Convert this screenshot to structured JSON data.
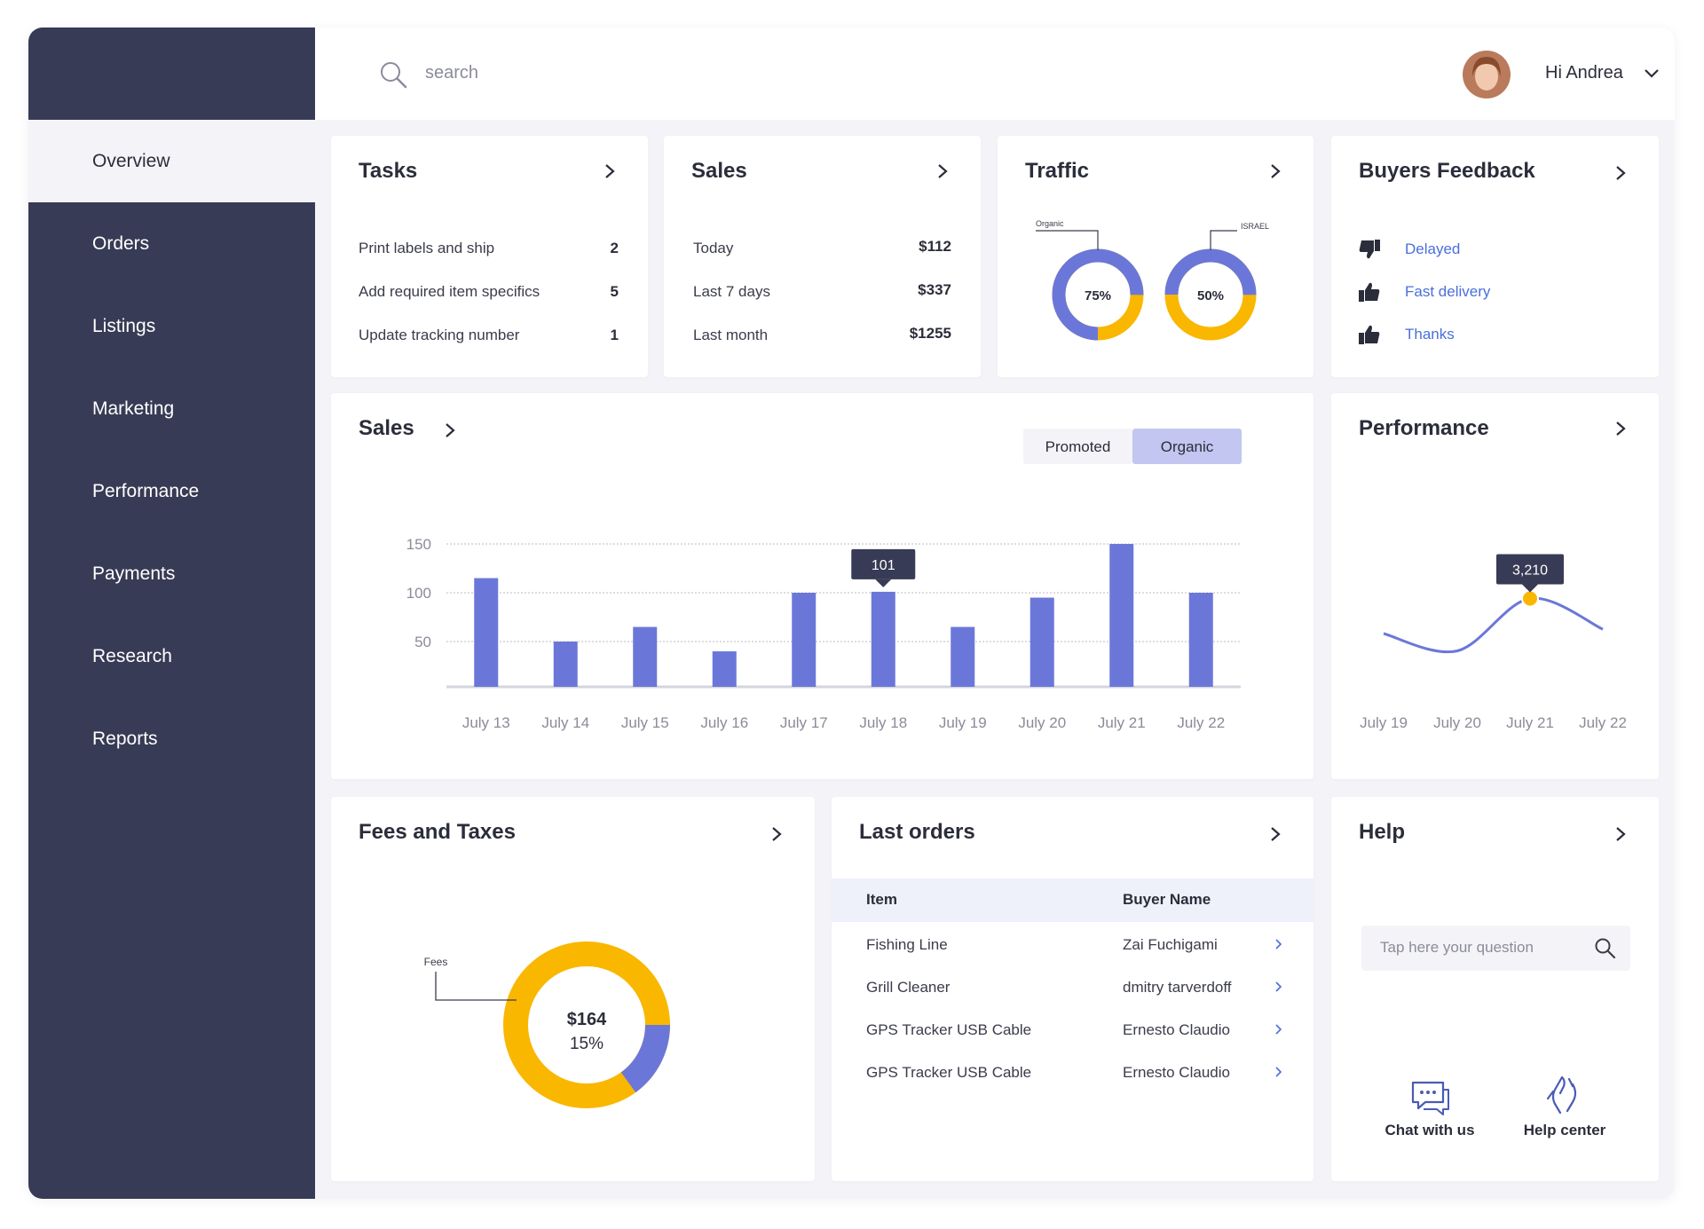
{
  "search_placeholder": "search",
  "user": {
    "greeting": "Hi Andrea"
  },
  "nav": [
    "Overview",
    "Orders",
    "Listings",
    "Marketing",
    "Performance",
    "Payments",
    "Research",
    "Reports"
  ],
  "active_nav": 0,
  "tasks": {
    "title": "Tasks",
    "rows": [
      {
        "label": "Print labels and ship",
        "count": 2
      },
      {
        "label": "Add required item specifics",
        "count": 5
      },
      {
        "label": "Update tracking number",
        "count": 1
      }
    ]
  },
  "sales_summary": {
    "title": "Sales",
    "rows": [
      {
        "label": "Today",
        "amount": "$112"
      },
      {
        "label": "Last 7 days",
        "amount": "$337"
      },
      {
        "label": "Last month",
        "amount": "$1255"
      }
    ]
  },
  "traffic": {
    "title": "Traffic",
    "charts": [
      {
        "type": "donut",
        "label": "Organic",
        "value": 75,
        "value_label": "75%",
        "color": "#6b77d8",
        "rest_color": "#f9b700"
      },
      {
        "type": "donut",
        "label": "ISRAEL",
        "value": 50,
        "value_label": "50%",
        "color": "#6b77d8",
        "rest_color": "#f9b700"
      }
    ]
  },
  "feedback": {
    "title": "Buyers Feedback",
    "items": [
      {
        "label": "Delayed",
        "sentiment": "negative"
      },
      {
        "label": "Fast delivery",
        "sentiment": "positive"
      },
      {
        "label": "Thanks",
        "sentiment": "positive"
      }
    ]
  },
  "sales_chart": {
    "type": "bar",
    "title": "Sales",
    "toggle": [
      "Promoted",
      "Organic"
    ],
    "active_toggle": 1,
    "categories": [
      "July 13",
      "July 14",
      "July 15",
      "July 16",
      "July 17",
      "July 18",
      "July 19",
      "July 20",
      "July 21",
      "July 22"
    ],
    "values": [
      115,
      50,
      65,
      40,
      100,
      101,
      65,
      95,
      150,
      100
    ],
    "color": "#6b77d8",
    "ylim": [
      0,
      150
    ],
    "yticks": [
      50,
      100,
      150
    ],
    "grid": true,
    "highlight": 5
  },
  "performance": {
    "type": "line",
    "title": "Performance",
    "categories": [
      "July 19",
      "July 20",
      "July 21",
      "July 22"
    ],
    "values": [
      2400,
      2000,
      3210,
      2500
    ],
    "ylim": [
      0,
      4000
    ],
    "color": "#6b77d8",
    "highlight": 2,
    "highlight_label": "3,210"
  },
  "fees": {
    "type": "donut",
    "title": "Fees and Taxes",
    "label": "Fees",
    "amount": "$164",
    "value": 15,
    "value_label": "15%",
    "color": "#6b77d8",
    "rest_color": "#f9b700"
  },
  "orders": {
    "title": "Last orders",
    "columns": [
      "Item",
      "Buyer Name"
    ],
    "rows": [
      [
        "Fishing Line",
        "Zai Fuchigami"
      ],
      [
        "Grill Cleaner",
        "dmitry tarverdoff"
      ],
      [
        "GPS Tracker USB Cable",
        "Ernesto Claudio"
      ],
      [
        "GPS Tracker USB Cable",
        "Ernesto Claudio"
      ]
    ]
  },
  "help": {
    "title": "Help",
    "placeholder": "Tap here your question",
    "links": [
      "Chat with us",
      "Help center"
    ]
  }
}
